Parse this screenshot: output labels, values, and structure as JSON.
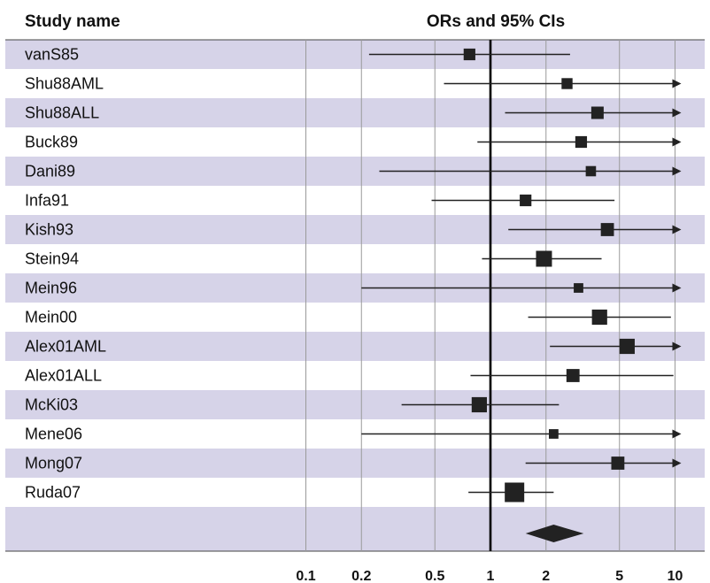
{
  "chart_data": {
    "type": "forest",
    "column_header_left": "Study name",
    "column_header_right": "ORs and 95% CIs",
    "x_scale": "log",
    "xlim": [
      0.1,
      10
    ],
    "x_ticks": [
      "0.1",
      "0.2",
      "0.5",
      "1",
      "2",
      "5",
      "10"
    ],
    "reference_line": 1,
    "arrow_beyond_limit": true,
    "row_band_color": "#d6d3e8",
    "mark_color": "#222222",
    "studies": [
      {
        "name": "vanS85",
        "or": 0.77,
        "lo": 0.22,
        "hi": 2.7,
        "weight": 0.45
      },
      {
        "name": "Shu88AML",
        "or": 2.6,
        "lo": 0.56,
        "hi": 12,
        "weight": 0.4
      },
      {
        "name": "Shu88ALL",
        "or": 3.8,
        "lo": 1.2,
        "hi": 12,
        "weight": 0.5
      },
      {
        "name": "Buck89",
        "or": 3.1,
        "lo": 0.85,
        "hi": 12,
        "weight": 0.45
      },
      {
        "name": "Dani89",
        "or": 3.5,
        "lo": 0.25,
        "hi": 12,
        "weight": 0.35
      },
      {
        "name": "Infa91",
        "or": 1.55,
        "lo": 0.48,
        "hi": 4.7,
        "weight": 0.45
      },
      {
        "name": "Kish93",
        "or": 4.3,
        "lo": 1.25,
        "hi": 12,
        "weight": 0.55
      },
      {
        "name": "Stein94",
        "or": 1.95,
        "lo": 0.9,
        "hi": 4.0,
        "weight": 0.75
      },
      {
        "name": "Mein96",
        "or": 3.0,
        "lo": 0.2,
        "hi": 12,
        "weight": 0.3
      },
      {
        "name": "Mein00",
        "or": 3.9,
        "lo": 1.6,
        "hi": 9.5,
        "weight": 0.7
      },
      {
        "name": "Alex01AML",
        "or": 5.5,
        "lo": 2.1,
        "hi": 12,
        "weight": 0.7
      },
      {
        "name": "Alex01ALL",
        "or": 2.8,
        "lo": 0.78,
        "hi": 9.8,
        "weight": 0.55
      },
      {
        "name": "McKi03",
        "or": 0.87,
        "lo": 0.33,
        "hi": 2.35,
        "weight": 0.7
      },
      {
        "name": "Mene06",
        "or": 2.2,
        "lo": 0.2,
        "hi": 12,
        "weight": 0.3
      },
      {
        "name": "Mong07",
        "or": 4.9,
        "lo": 1.55,
        "hi": 12,
        "weight": 0.55
      },
      {
        "name": "Ruda07",
        "or": 1.35,
        "lo": 0.76,
        "hi": 2.2,
        "weight": 1.0
      }
    ],
    "pooled": {
      "or": 2.2,
      "lo": 1.55,
      "hi": 3.2
    }
  }
}
